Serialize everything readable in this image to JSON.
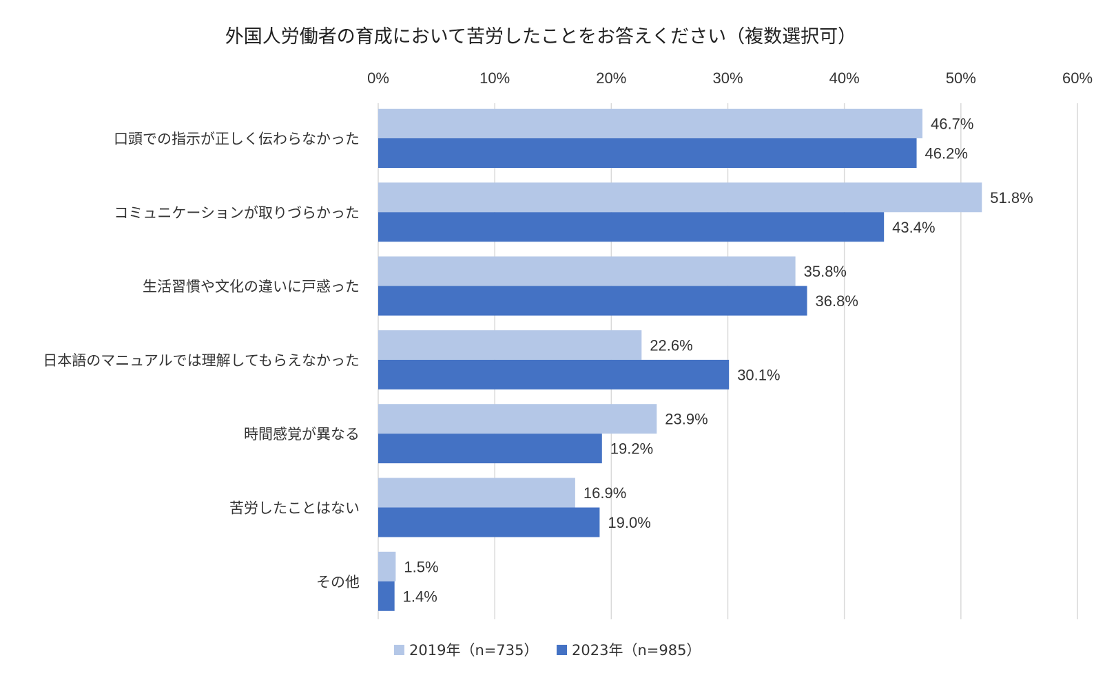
{
  "chart_data": {
    "type": "bar",
    "orientation": "horizontal",
    "title": "外国人労働者の育成において苦労したことをお答えください（複数選択可）",
    "xlim": [
      0,
      60
    ],
    "ticks": [
      0,
      10,
      20,
      30,
      40,
      50,
      60
    ],
    "tick_labels": [
      "0%",
      "10%",
      "20%",
      "30%",
      "40%",
      "50%",
      "60%"
    ],
    "axis_position": "top",
    "grid": true,
    "legend_position": "bottom",
    "categories": [
      "口頭での指示が正しく伝わらなかった",
      "コミュニケーションが取りづらかった",
      "生活習慣や文化の違いに戸惑った",
      "日本語のマニュアルでは理解してもらえなかった",
      "時間感覚が異なる",
      "苦労したことはない",
      "その他"
    ],
    "series": [
      {
        "name": "2019年（n=735）",
        "color": "#b4c7e7",
        "values": [
          46.7,
          51.8,
          35.8,
          22.6,
          23.9,
          16.9,
          1.5
        ],
        "labels": [
          "46.7%",
          "51.8%",
          "35.8%",
          "22.6%",
          "23.9%",
          "16.9%",
          "1.5%"
        ]
      },
      {
        "name": "2023年（n=985）",
        "color": "#4472c4",
        "values": [
          46.2,
          43.4,
          36.8,
          30.1,
          19.2,
          19.0,
          1.4
        ],
        "labels": [
          "46.2%",
          "43.4%",
          "36.8%",
          "30.1%",
          "19.2%",
          "19.0%",
          "1.4%"
        ]
      }
    ]
  }
}
